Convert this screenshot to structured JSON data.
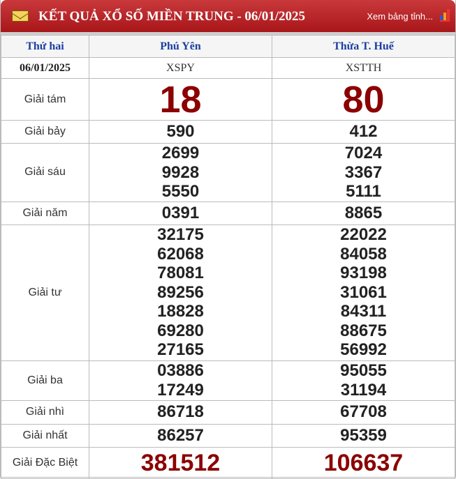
{
  "header": {
    "title": "KẾT QUẢ XỔ SỐ MIỀN TRUNG - 06/01/2025",
    "more_link": "Xem bảng tỉnh...",
    "icons": [
      "envelope-icon",
      "bar-chart-icon"
    ]
  },
  "colors": {
    "header_red": "#b5202a",
    "number_red": "#8b0000",
    "province_blue": "#1a3fa0"
  },
  "table": {
    "day": "Thứ hai",
    "date": "06/01/2025",
    "provinces": [
      {
        "name": "Phú Yên",
        "code": "XSPY"
      },
      {
        "name": "Thừa T. Huế",
        "code": "XSTTH"
      }
    ],
    "prizes": [
      {
        "label": "Giải tám",
        "style": "big",
        "values": [
          [
            "18"
          ],
          [
            "80"
          ]
        ]
      },
      {
        "label": "Giải bảy",
        "style": "n",
        "values": [
          [
            "590"
          ],
          [
            "412"
          ]
        ]
      },
      {
        "label": "Giải sáu",
        "style": "n",
        "values": [
          [
            "2699",
            "9928",
            "5550"
          ],
          [
            "7024",
            "3367",
            "5111"
          ]
        ]
      },
      {
        "label": "Giải năm",
        "style": "n",
        "values": [
          [
            "0391"
          ],
          [
            "8865"
          ]
        ]
      },
      {
        "label": "Giải tư",
        "style": "n",
        "values": [
          [
            "32175",
            "62068",
            "78081",
            "89256",
            "18828",
            "69280",
            "27165"
          ],
          [
            "22022",
            "84058",
            "93198",
            "31061",
            "84311",
            "88675",
            "56992"
          ]
        ]
      },
      {
        "label": "Giải ba",
        "style": "n",
        "values": [
          [
            "03886",
            "17249"
          ],
          [
            "95055",
            "31194"
          ]
        ]
      },
      {
        "label": "Giải nhì",
        "style": "n",
        "values": [
          [
            "86718"
          ],
          [
            "67708"
          ]
        ]
      },
      {
        "label": "Giải nhất",
        "style": "n",
        "values": [
          [
            "86257"
          ],
          [
            "95359"
          ]
        ]
      },
      {
        "label": "Giải Đặc Biệt",
        "style": "db",
        "values": [
          [
            "381512"
          ],
          [
            "106637"
          ]
        ]
      }
    ]
  }
}
